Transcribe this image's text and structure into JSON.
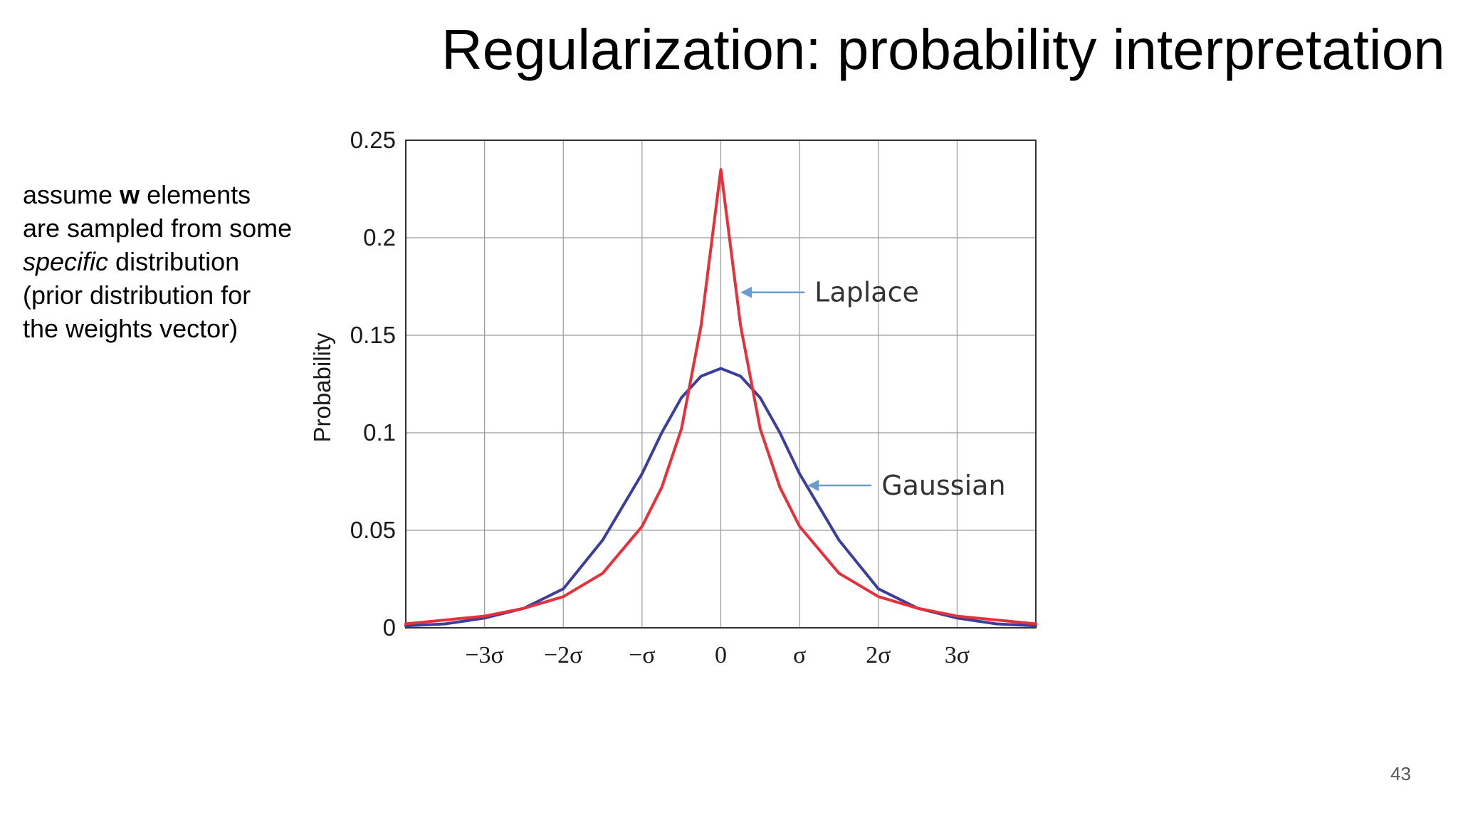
{
  "slide": {
    "title": "Regularization: probability interpretation",
    "page_number": "43",
    "side_text": {
      "part1": "assume ",
      "bold": "w",
      "part2": " elements are sampled from some ",
      "italic": "specific",
      "part3": " distribution (prior distribution for the weights vector)"
    }
  },
  "chart_data": {
    "type": "line",
    "title": "",
    "xlabel": "",
    "ylabel": "Probability",
    "xlim": [
      -4,
      4
    ],
    "ylim": [
      0,
      0.25
    ],
    "grid": true,
    "x_ticks": [
      {
        "value": -3,
        "label": "−3σ"
      },
      {
        "value": -2,
        "label": "−2σ"
      },
      {
        "value": -1,
        "label": "−σ"
      },
      {
        "value": 0,
        "label": "0"
      },
      {
        "value": 1,
        "label": "σ"
      },
      {
        "value": 2,
        "label": "2σ"
      },
      {
        "value": 3,
        "label": "3σ"
      }
    ],
    "y_ticks": [
      {
        "value": 0,
        "label": "0"
      },
      {
        "value": 0.05,
        "label": "0.05"
      },
      {
        "value": 0.1,
        "label": "0.1"
      },
      {
        "value": 0.15,
        "label": "0.15"
      },
      {
        "value": 0.2,
        "label": "0.2"
      },
      {
        "value": 0.25,
        "label": "0.25"
      }
    ],
    "series": [
      {
        "name": "Laplace",
        "color": "#e8303a",
        "x": [
          -4,
          -3.5,
          -3,
          -2.5,
          -2,
          -1.5,
          -1,
          -0.75,
          -0.5,
          -0.25,
          0,
          0.25,
          0.5,
          0.75,
          1,
          1.5,
          2,
          2.5,
          3,
          3.5,
          4
        ],
        "y": [
          0.002,
          0.004,
          0.006,
          0.01,
          0.016,
          0.028,
          0.052,
          0.072,
          0.102,
          0.155,
          0.235,
          0.155,
          0.102,
          0.072,
          0.052,
          0.028,
          0.016,
          0.01,
          0.006,
          0.004,
          0.002
        ]
      },
      {
        "name": "Gaussian",
        "color": "#3d3d9e",
        "x": [
          -4,
          -3.5,
          -3,
          -2.5,
          -2,
          -1.5,
          -1,
          -0.75,
          -0.5,
          -0.25,
          0,
          0.25,
          0.5,
          0.75,
          1,
          1.5,
          2,
          2.5,
          3,
          3.5,
          4
        ],
        "y": [
          0.001,
          0.002,
          0.005,
          0.01,
          0.02,
          0.045,
          0.079,
          0.1,
          0.118,
          0.129,
          0.133,
          0.129,
          0.118,
          0.1,
          0.079,
          0.045,
          0.02,
          0.01,
          0.005,
          0.002,
          0.001
        ]
      }
    ],
    "annotations": [
      {
        "text": "Laplace",
        "x": 0.25,
        "y": 0.172,
        "series": "Laplace"
      },
      {
        "text": "Gaussian",
        "x": 1.1,
        "y": 0.073,
        "series": "Gaussian"
      }
    ],
    "annotation_arrow_color": "#6a9bd1"
  }
}
